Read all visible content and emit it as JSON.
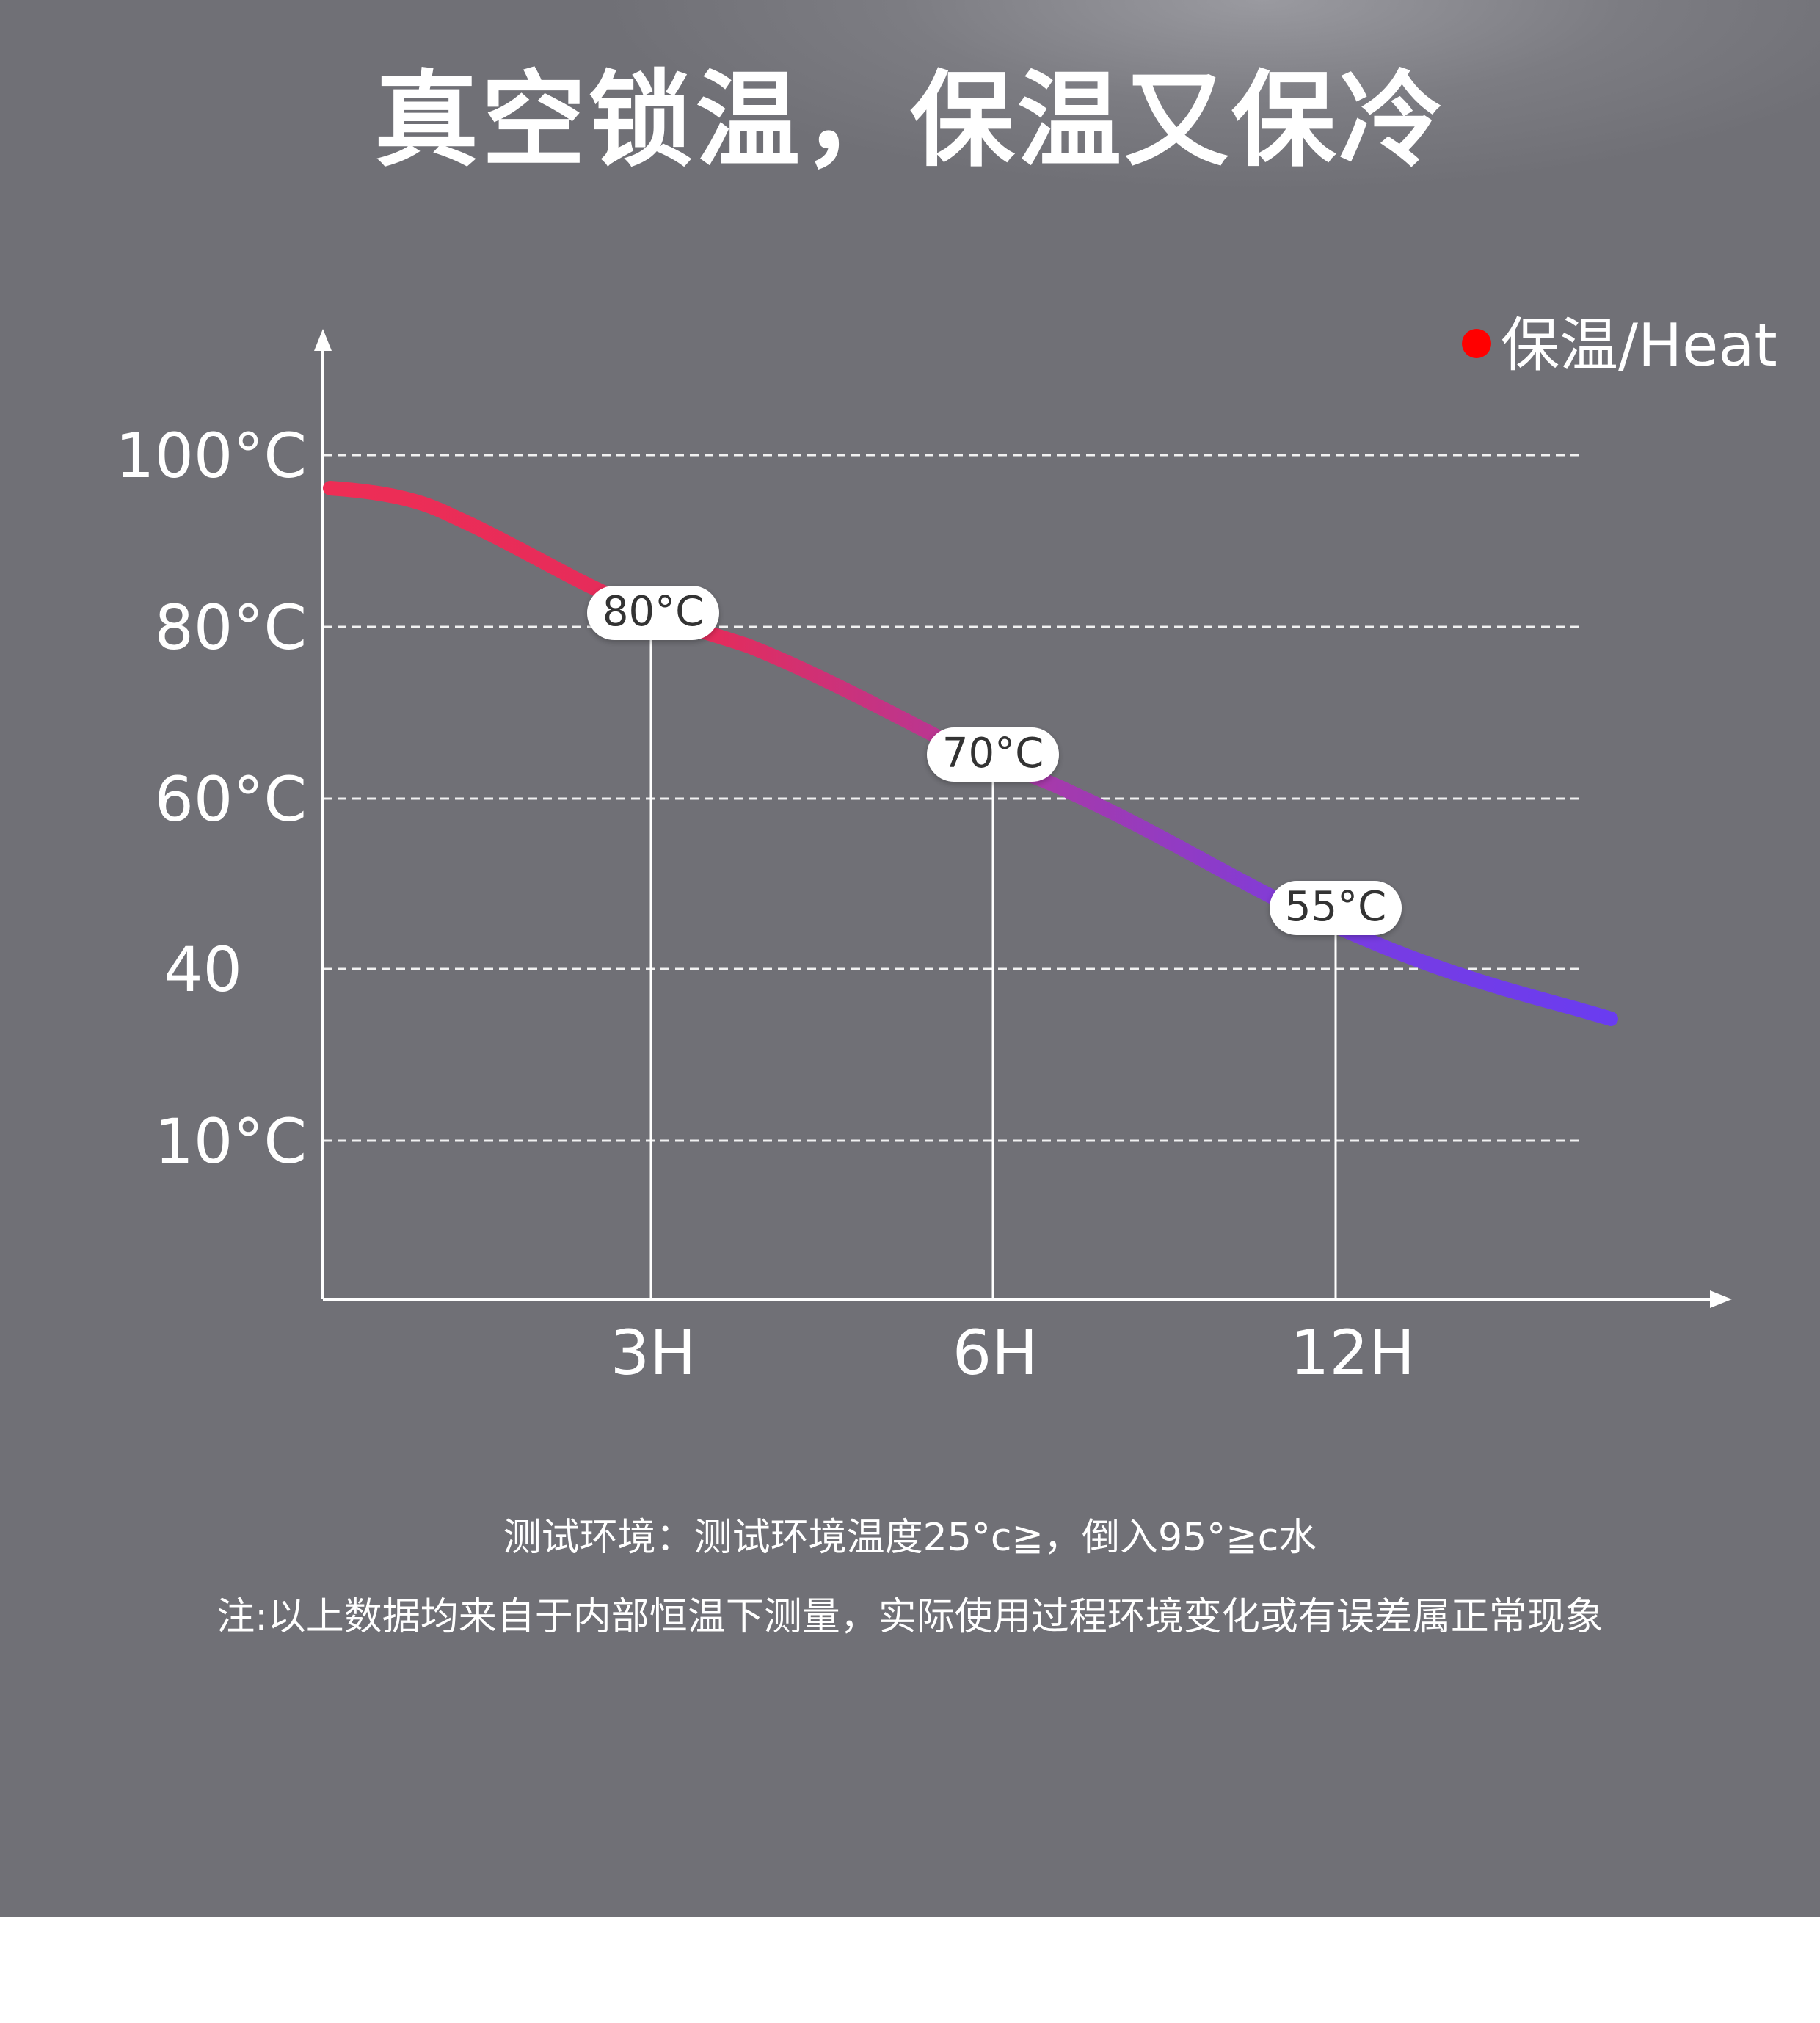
{
  "title": "真空锁温，保温又保冷",
  "notes": {
    "line1": "测试环境：测试环境温度25°c≧，倒入95°≧c水",
    "line2": "注:以上数据均来自于内部恒温下测量，实际使用过程环境变化或有误差属正常现象"
  },
  "colors": {
    "background": "#75757b",
    "curve_start": "#ee2d55",
    "curve_mid": "#b03a9c",
    "curve_end": "#6a3cf0",
    "legend_dot": "#ff0000",
    "grid": "#ffffff"
  },
  "chart_data": {
    "type": "line",
    "title": "",
    "xlabel": "",
    "ylabel": "",
    "grid": true,
    "legend_placement": "top-right",
    "x_ticks": [
      "3H",
      "6H",
      "12H"
    ],
    "y_ticks": [
      "100°C",
      "80°C",
      "60°C",
      "40",
      "10°C"
    ],
    "series": [
      {
        "name": "●保温/Heat",
        "legend_text": "保温/Heat",
        "points": [
          {
            "x": 0,
            "y": 96
          },
          {
            "x": 3,
            "y": 80
          },
          {
            "x": 6,
            "y": 70
          },
          {
            "x": 12,
            "y": 55
          },
          {
            "x": 15,
            "y": 36
          }
        ]
      }
    ],
    "data_labels": [
      {
        "x": "3H",
        "value": "80°C"
      },
      {
        "x": "6H",
        "value": "70°C"
      },
      {
        "x": "12H",
        "value": "55°C"
      }
    ]
  }
}
